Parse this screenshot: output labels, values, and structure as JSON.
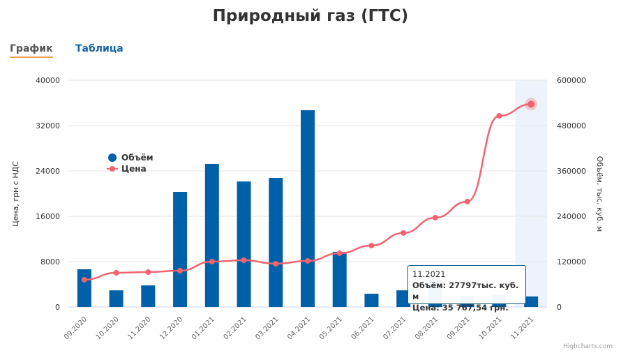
{
  "title": "Природный газ (ГТС)",
  "tabs": [
    {
      "label": "График"
    },
    {
      "label": "Таблица"
    }
  ],
  "chart_data": {
    "type": "bar+line",
    "title": "Природный газ (ГТС)",
    "categories": [
      "09.2020",
      "10.2020",
      "11.2020",
      "12.2020",
      "01.2021",
      "02.2021",
      "03.2021",
      "04.2021",
      "05.2021",
      "06.2021",
      "07.2021",
      "08.2021",
      "09.2021",
      "10.2021",
      "11.2021"
    ],
    "series": [
      {
        "name": "Объём",
        "type": "bar",
        "axis": "right",
        "color": "#0060a8",
        "values": [
          99700,
          44000,
          57000,
          304600,
          378500,
          332000,
          341500,
          520600,
          146000,
          35000,
          44000,
          70000,
          30000,
          33000,
          27797
        ]
      },
      {
        "name": "Цена",
        "type": "line",
        "axis": "left",
        "color": "#f06470",
        "values": [
          4800,
          6030,
          6150,
          6400,
          8000,
          8250,
          7630,
          8120,
          9480,
          10830,
          13050,
          15750,
          18580,
          33720,
          35767.54
        ]
      }
    ],
    "left_axis": {
      "label": "Цена, грн с НДС",
      "ticks": [
        "0",
        "8000",
        "16000",
        "24000",
        "32000",
        "40000"
      ],
      "range": [
        0,
        40000
      ]
    },
    "right_axis": {
      "label": "Объём, тыс. куб. м",
      "ticks": [
        "0",
        "120000",
        "240000",
        "360000",
        "480000",
        "600000"
      ],
      "range": [
        0,
        600000
      ]
    },
    "legend_placement": "left-inside"
  },
  "tooltip": {
    "date": "11.2021",
    "volume": "Объём: 27797тыс. куб. м",
    "price": "Цена: 35 767,54 грн."
  },
  "credit": "Highcharts.com"
}
